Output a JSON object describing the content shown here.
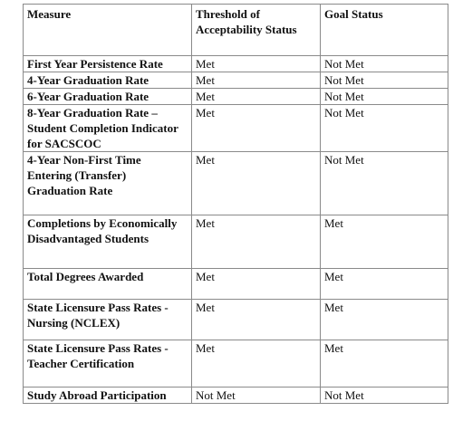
{
  "table": {
    "headers": [
      "Measure",
      "Threshold of Acceptability Status",
      "Goal Status"
    ],
    "rows": [
      {
        "measure": "First Year Persistence Rate",
        "threshold": "Met",
        "goal": "Not Met"
      },
      {
        "measure": "4-Year Graduation Rate",
        "threshold": "Met",
        "goal": "Not Met"
      },
      {
        "measure": "6-Year Graduation Rate",
        "threshold": "Met",
        "goal": "Not Met"
      },
      {
        "measure": "8-Year Graduation Rate – Student Completion Indicator for SACSCOC",
        "threshold": "Met",
        "goal": "Not Met"
      },
      {
        "measure": "4-Year Non-First Time Entering (Transfer) Graduation Rate",
        "threshold": "Met",
        "goal": "Not Met"
      },
      {
        "measure": "Completions by Economically Disadvantaged Students",
        "threshold": "Met",
        "goal": "Met"
      },
      {
        "measure": "Total Degrees Awarded",
        "threshold": "Met",
        "goal": "Met"
      },
      {
        "measure": "State Licensure Pass Rates - Nursing (NCLEX)",
        "threshold": "Met",
        "goal": "Met"
      },
      {
        "measure": "State Licensure Pass Rates - Teacher Certification",
        "threshold": "Met",
        "goal": "Met"
      },
      {
        "measure": "Study Abroad Participation",
        "threshold": "Not Met",
        "goal": "Not Met"
      }
    ]
  }
}
